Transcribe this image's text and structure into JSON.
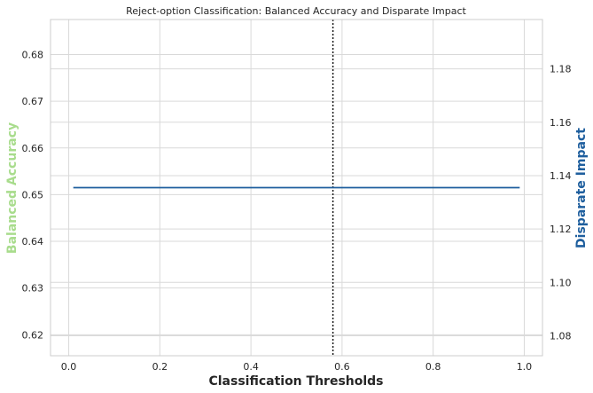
{
  "chart_data": {
    "type": "line",
    "title": "Reject-option Classification: Balanced Accuracy and Disparate Impact",
    "xlabel": "Classification Thresholds",
    "ylabel_left": "Balanced Accuracy",
    "ylabel_right": "Disparate Impact",
    "xlim": [
      -0.04,
      1.04
    ],
    "ylim_left": [
      0.6155,
      0.6875
    ],
    "ylim_right": [
      1.0725,
      1.1985
    ],
    "x_ticks": [
      "0.0",
      "0.2",
      "0.4",
      "0.6",
      "0.8",
      "1.0"
    ],
    "x_tick_values": [
      0.0,
      0.2,
      0.4,
      0.6,
      0.8,
      1.0
    ],
    "y_left_ticks": [
      "0.62",
      "0.63",
      "0.64",
      "0.65",
      "0.66",
      "0.67",
      "0.68"
    ],
    "y_left_tick_values": [
      0.62,
      0.63,
      0.64,
      0.65,
      0.66,
      0.67,
      0.68
    ],
    "y_right_ticks": [
      "1.08",
      "1.10",
      "1.12",
      "1.14",
      "1.16",
      "1.18"
    ],
    "y_right_tick_values": [
      1.08,
      1.1,
      1.12,
      1.14,
      1.16,
      1.18
    ],
    "grid": true,
    "threshold_line_x": 0.58,
    "series": [
      {
        "axis": "right",
        "color": "#1f5f9e",
        "x": [
          0.01,
          0.99
        ],
        "y": [
          1.1355,
          1.1355
        ]
      }
    ],
    "colors": {
      "left_label": "#a8dc8c",
      "right_label": "#1f5f9e",
      "grid": "#d9d9d9",
      "threshold": "#1a1a1a"
    }
  }
}
